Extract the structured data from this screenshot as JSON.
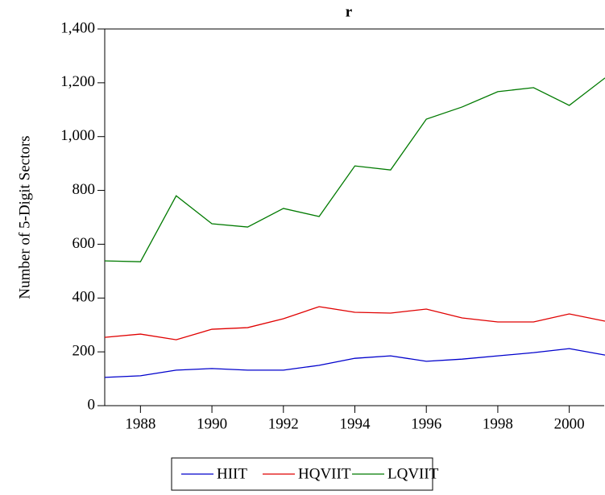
{
  "chart_data": {
    "type": "line",
    "title": "r",
    "y_label": "Number of 5-Digit Sectors",
    "x": [
      1987,
      1988,
      1989,
      1990,
      1991,
      1992,
      1993,
      1994,
      1995,
      1996,
      1997,
      1998,
      1999,
      2000,
      2001
    ],
    "series": [
      {
        "name": "HIIT",
        "color": "#0000cc",
        "values": [
          105,
          111,
          132,
          138,
          132,
          132,
          150,
          176,
          185,
          165,
          173,
          185,
          197,
          212,
          188
        ]
      },
      {
        "name": "HQVIIT",
        "color": "#e00000",
        "values": [
          254,
          266,
          245,
          284,
          290,
          323,
          368,
          347,
          344,
          359,
          326,
          311,
          311,
          341,
          314
        ]
      },
      {
        "name": "LQVIIT",
        "color": "#007a00",
        "values": [
          538,
          535,
          780,
          676,
          664,
          733,
          703,
          891,
          876,
          1065,
          1110,
          1167,
          1182,
          1116,
          1218
        ]
      }
    ],
    "xlim": [
      1987,
      2001
    ],
    "xticks": [
      1988,
      1990,
      1992,
      1994,
      1996,
      1998,
      2000
    ],
    "ylim": [
      0,
      1400
    ],
    "yticks": [
      0,
      200,
      400,
      600,
      800,
      {
        "value": 1000,
        "label": "1,000"
      },
      {
        "value": 1200,
        "label": "1,200"
      },
      {
        "value": 1400,
        "label": "1,400"
      }
    ],
    "legend": "bottom"
  }
}
